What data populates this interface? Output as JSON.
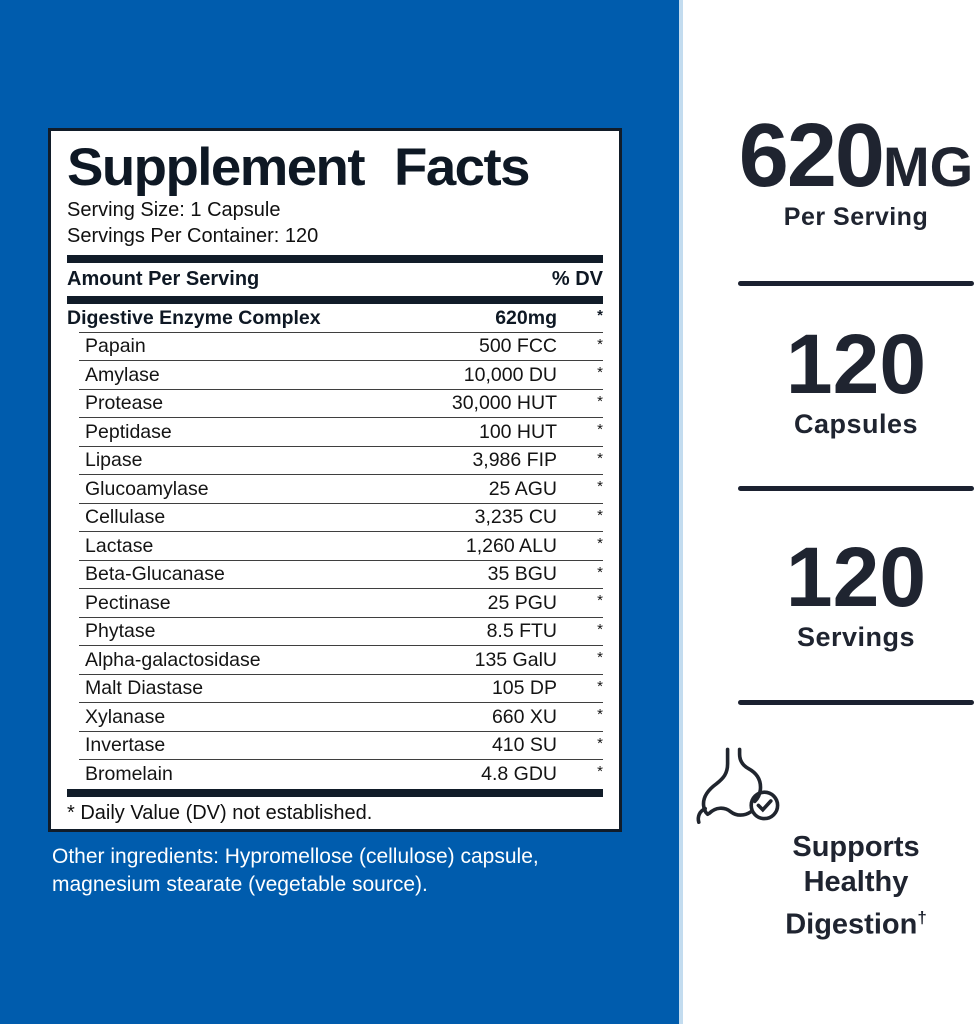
{
  "panel": {
    "title": "Supplement Facts",
    "serving_size": "Serving Size: 1 Capsule",
    "servings_per_container": "Servings Per Container: 120",
    "header": {
      "amount": "Amount Per Serving",
      "dv": "% DV"
    },
    "rows": [
      {
        "name": "Digestive Enzyme Complex",
        "amount": "620mg",
        "dv": "*",
        "bold": true,
        "indent": false
      },
      {
        "name": "Papain",
        "amount": "500 FCC",
        "dv": "*",
        "bold": false,
        "indent": true
      },
      {
        "name": "Amylase",
        "amount": "10,000 DU",
        "dv": "*",
        "bold": false,
        "indent": true
      },
      {
        "name": "Protease",
        "amount": "30,000 HUT",
        "dv": "*",
        "bold": false,
        "indent": true
      },
      {
        "name": "Peptidase",
        "amount": "100 HUT",
        "dv": "*",
        "bold": false,
        "indent": true
      },
      {
        "name": "Lipase",
        "amount": "3,986 FIP",
        "dv": "*",
        "bold": false,
        "indent": true
      },
      {
        "name": "Glucoamylase",
        "amount": "25 AGU",
        "dv": "*",
        "bold": false,
        "indent": true
      },
      {
        "name": "Cellulase",
        "amount": "3,235 CU",
        "dv": "*",
        "bold": false,
        "indent": true
      },
      {
        "name": "Lactase",
        "amount": "1,260 ALU",
        "dv": "*",
        "bold": false,
        "indent": true
      },
      {
        "name": "Beta-Glucanase",
        "amount": "35 BGU",
        "dv": "*",
        "bold": false,
        "indent": true
      },
      {
        "name": "Pectinase",
        "amount": "25 PGU",
        "dv": "*",
        "bold": false,
        "indent": true
      },
      {
        "name": "Phytase",
        "amount": "8.5 FTU",
        "dv": "*",
        "bold": false,
        "indent": true
      },
      {
        "name": "Alpha-galactosidase",
        "amount": "135 GalU",
        "dv": "*",
        "bold": false,
        "indent": true
      },
      {
        "name": "Malt Diastase",
        "amount": "105 DP",
        "dv": "*",
        "bold": false,
        "indent": true
      },
      {
        "name": "Xylanase",
        "amount": "660 XU",
        "dv": "*",
        "bold": false,
        "indent": true
      },
      {
        "name": "Invertase",
        "amount": "410 SU",
        "dv": "*",
        "bold": false,
        "indent": true
      },
      {
        "name": "Bromelain",
        "amount": "4.8 GDU",
        "dv": "*",
        "bold": false,
        "indent": true
      }
    ],
    "footnote": "* Daily Value (DV) not established."
  },
  "other_ingredients": "Other ingredients: Hypromellose (cellulose) capsule, magnesium stearate (vegetable source).",
  "right": {
    "dosage": {
      "value": "620",
      "unit": "MG",
      "label": "Per Serving"
    },
    "capsules": {
      "value": "120",
      "label": "Capsules"
    },
    "servings": {
      "value": "120",
      "label": "Servings"
    },
    "claim": {
      "line1": "Supports Healthy",
      "line2": "Digestion",
      "dagger": "†"
    },
    "icon": "stomach-check-icon"
  },
  "colors": {
    "blue_background": "#005CAD",
    "blue_edge_light": "#C3DCEF",
    "panel_navy": "#111C29",
    "right_text_dark": "#1F2430"
  }
}
